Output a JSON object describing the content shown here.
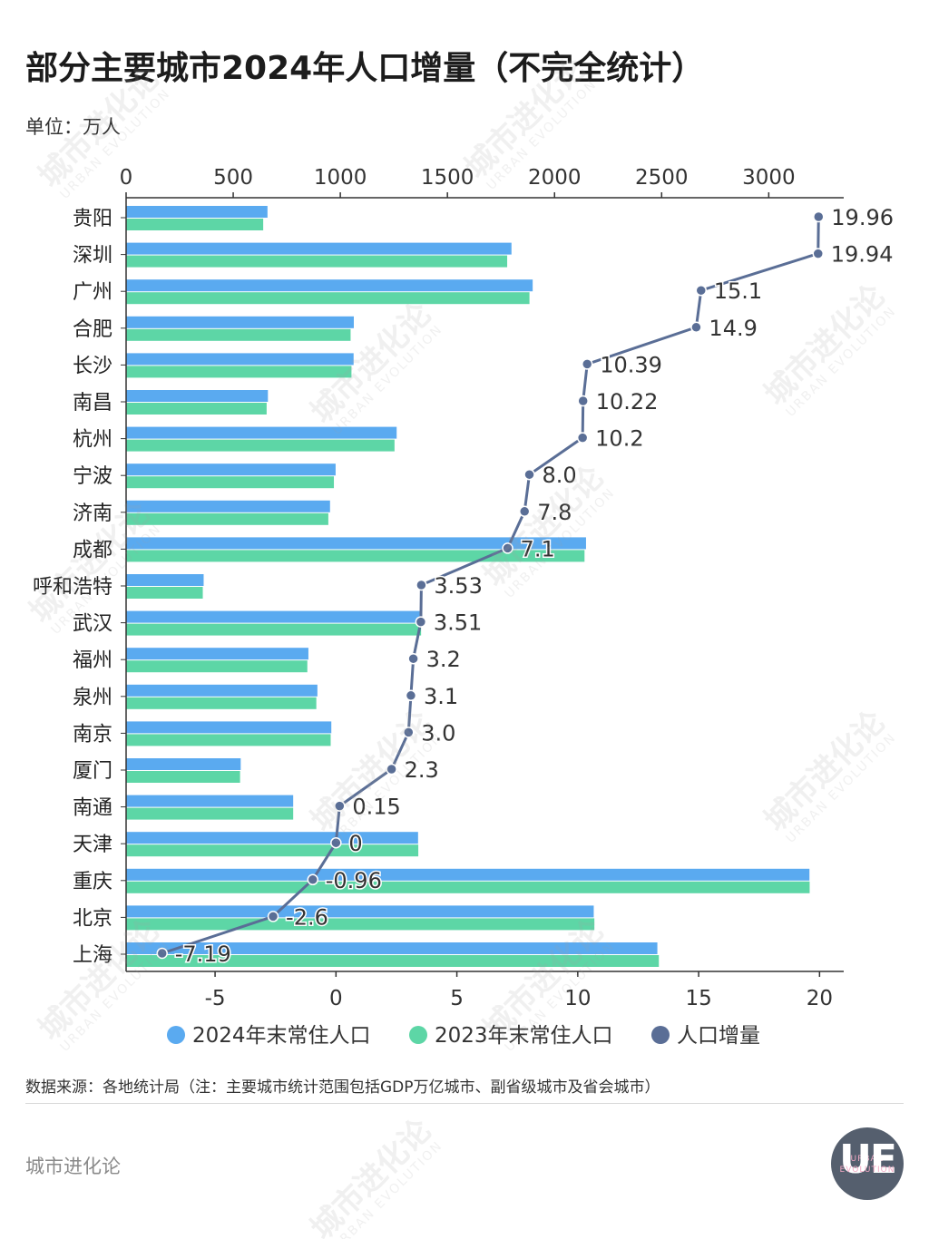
{
  "title": "部分主要城市2024年人口增量（不完全统计）",
  "unit": "单位：万人",
  "source": "数据来源：各地统计局（注：主要城市统计范围包括GDP万亿城市、副省级城市及省会城市）",
  "brand": "城市进化论",
  "logo": {
    "mark": "UE",
    "line1": "URBAN",
    "line2": "EVOLUTION"
  },
  "watermark": {
    "cn": "城市进化论",
    "en": "URBAN EVOLUTION"
  },
  "colors": {
    "bar_2024": "#5aaaf0",
    "bar_2023": "#5dd6a6",
    "line": "#5a6e96",
    "axis": "#333333"
  },
  "chart_data": {
    "type": "bar",
    "orientation": "horizontal",
    "categories": [
      "贵阳",
      "深圳",
      "广州",
      "合肥",
      "长沙",
      "南昌",
      "杭州",
      "宁波",
      "济南",
      "成都",
      "呼和浩特",
      "武汉",
      "福州",
      "泉州",
      "南京",
      "厦门",
      "南通",
      "天津",
      "重庆",
      "北京",
      "上海"
    ],
    "series": [
      {
        "name": "2024年末常住人口",
        "axis": "top",
        "color": "#5aaaf0",
        "values": [
          660,
          1799,
          1898,
          1063,
          1062,
          662,
          1263,
          978,
          952,
          2147,
          362,
          1380,
          851,
          893,
          958,
          535,
          780,
          1363,
          3190,
          2183,
          2480
        ]
      },
      {
        "name": "2023年末常住人口",
        "axis": "top",
        "color": "#5dd6a6",
        "values": [
          640,
          1779,
          1883,
          1048,
          1052,
          656,
          1253,
          970,
          944,
          2140,
          358,
          1377,
          846,
          888,
          955,
          532,
          780,
          1364,
          3191,
          2186,
          2487
        ]
      },
      {
        "name": "人口增量",
        "type": "line",
        "axis": "bottom",
        "color": "#5a6e96",
        "values": [
          19.96,
          19.94,
          15.1,
          14.9,
          10.39,
          10.22,
          10.2,
          8.0,
          7.8,
          7.1,
          3.53,
          3.51,
          3.2,
          3.1,
          3.0,
          2.3,
          0.15,
          0,
          -0.96,
          -2.6,
          -7.19
        ],
        "labels": [
          "19.96",
          "19.94",
          "15.1",
          "14.9",
          "10.39",
          "10.22",
          "10.2",
          "8.0",
          "7.8",
          "7.1",
          "3.53",
          "3.51",
          "3.2",
          "3.1",
          "3.0",
          "2.3",
          "0.15",
          "0",
          "-0.96",
          "-2.6",
          "-7.19"
        ]
      }
    ],
    "top_axis": {
      "range": [
        0,
        3350
      ],
      "ticks": [
        0,
        500,
        1000,
        1500,
        2000,
        2500,
        3000
      ]
    },
    "bottom_axis": {
      "range": [
        -8.68,
        21
      ],
      "ticks": [
        -5,
        0,
        5,
        10,
        15,
        20
      ]
    },
    "legend_position": "bottom"
  }
}
